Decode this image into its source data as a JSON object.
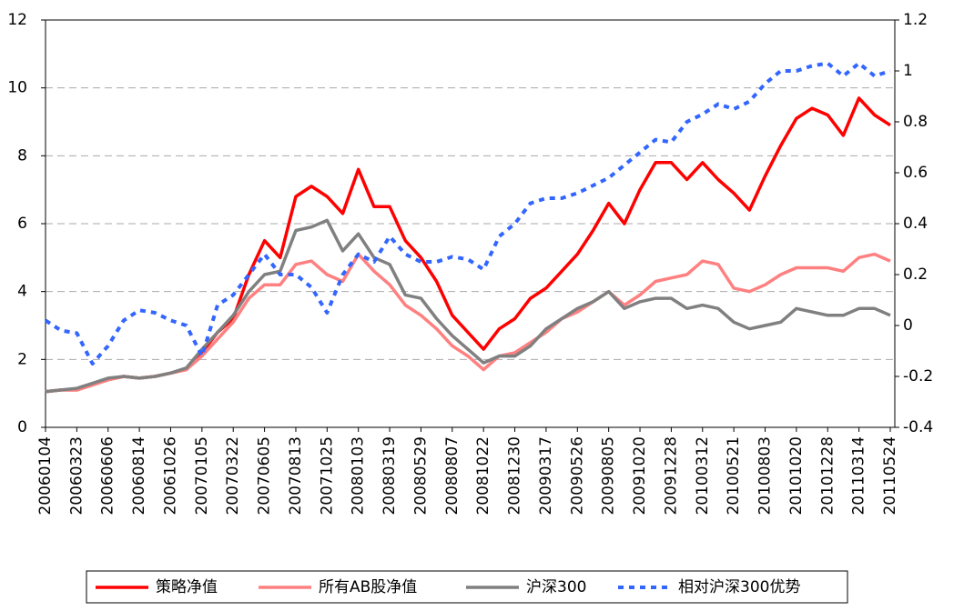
{
  "chart_data": {
    "type": "line",
    "categories": [
      "20060104",
      null,
      "20060323",
      null,
      "20060606",
      null,
      "20060814",
      null,
      "20061026",
      null,
      "20070105",
      null,
      "20070322",
      null,
      "20070605",
      null,
      "20070813",
      null,
      "20071025",
      null,
      "20080103",
      null,
      "20080319",
      null,
      "20080529",
      null,
      "20080807",
      null,
      "20081022",
      null,
      "20081230",
      null,
      "20090317",
      null,
      "20090526",
      null,
      "20090805",
      null,
      "20091020",
      null,
      "20091228",
      null,
      "20100312",
      null,
      "20100521",
      null,
      "20100803",
      null,
      "20101020",
      null,
      "20101228",
      null,
      "20110314",
      null,
      "20110524"
    ],
    "series": [
      {
        "name": "策略净值",
        "color": "#ff0000",
        "values": [
          1.05,
          1.1,
          1.1,
          1.25,
          1.4,
          1.5,
          1.45,
          1.5,
          1.6,
          1.7,
          2.2,
          2.8,
          3.2,
          4.5,
          5.5,
          5.0,
          6.8,
          7.1,
          6.8,
          6.3,
          7.6,
          6.5,
          6.5,
          5.5,
          5.0,
          4.3,
          3.3,
          2.8,
          2.3,
          2.9,
          3.2,
          3.8,
          4.1,
          4.6,
          5.1,
          5.8,
          6.6,
          6.0,
          7.0,
          7.8,
          7.8,
          7.3,
          7.8,
          7.3,
          6.9,
          6.4,
          7.4,
          8.3,
          9.1,
          9.4,
          9.2,
          8.6,
          9.7,
          9.2,
          8.9
        ]
      },
      {
        "name": "所有AB股净值",
        "color": "#ff8080",
        "values": [
          1.05,
          1.1,
          1.1,
          1.25,
          1.4,
          1.5,
          1.45,
          1.5,
          1.6,
          1.7,
          2.1,
          2.6,
          3.1,
          3.8,
          4.2,
          4.2,
          4.8,
          4.9,
          4.5,
          4.3,
          5.1,
          4.6,
          4.2,
          3.6,
          3.3,
          2.9,
          2.4,
          2.1,
          1.7,
          2.1,
          2.2,
          2.5,
          2.8,
          3.2,
          3.4,
          3.7,
          4.0,
          3.6,
          3.9,
          4.3,
          4.4,
          4.5,
          4.9,
          4.8,
          4.1,
          4.0,
          4.2,
          4.5,
          4.7,
          4.7,
          4.7,
          4.6,
          5.0,
          5.1,
          4.9
        ]
      },
      {
        "name": "沪深300",
        "color": "#808080",
        "values": [
          1.05,
          1.1,
          1.15,
          1.3,
          1.45,
          1.5,
          1.45,
          1.5,
          1.6,
          1.75,
          2.3,
          2.8,
          3.3,
          4.0,
          4.5,
          4.6,
          5.8,
          5.9,
          6.1,
          5.2,
          5.7,
          5.0,
          4.8,
          3.9,
          3.8,
          3.2,
          2.7,
          2.3,
          1.9,
          2.1,
          2.1,
          2.4,
          2.9,
          3.2,
          3.5,
          3.7,
          4.0,
          3.5,
          3.7,
          3.8,
          3.8,
          3.5,
          3.6,
          3.5,
          3.1,
          2.9,
          3.0,
          3.1,
          3.5,
          3.4,
          3.3,
          3.3,
          3.5,
          3.5,
          3.3
        ]
      },
      {
        "name": "相对沪深300优势",
        "color": "#3366ff",
        "axis": "y2",
        "dashed": true,
        "values": [
          0.02,
          -0.02,
          -0.03,
          -0.15,
          -0.08,
          0.02,
          0.06,
          0.05,
          0.02,
          0.0,
          -0.12,
          0.08,
          0.12,
          0.2,
          0.28,
          0.2,
          0.2,
          0.15,
          0.05,
          0.2,
          0.28,
          0.25,
          0.35,
          0.28,
          0.25,
          0.25,
          0.27,
          0.26,
          0.22,
          0.35,
          0.4,
          0.48,
          0.5,
          0.5,
          0.52,
          0.55,
          0.58,
          0.63,
          0.68,
          0.73,
          0.72,
          0.8,
          0.83,
          0.87,
          0.85,
          0.88,
          0.95,
          1.0,
          1.0,
          1.02,
          1.03,
          0.98,
          1.03,
          0.98,
          1.0
        ]
      }
    ],
    "ylim": [
      0,
      12
    ],
    "yticks": [
      0,
      2,
      4,
      6,
      8,
      10,
      12
    ],
    "y2lim": [
      -0.4,
      1.2
    ],
    "y2ticks": [
      -0.4,
      -0.2,
      0,
      0.2,
      0.4,
      0.6,
      0.8,
      1,
      1.2
    ],
    "grid": true,
    "legend": "bottom"
  }
}
